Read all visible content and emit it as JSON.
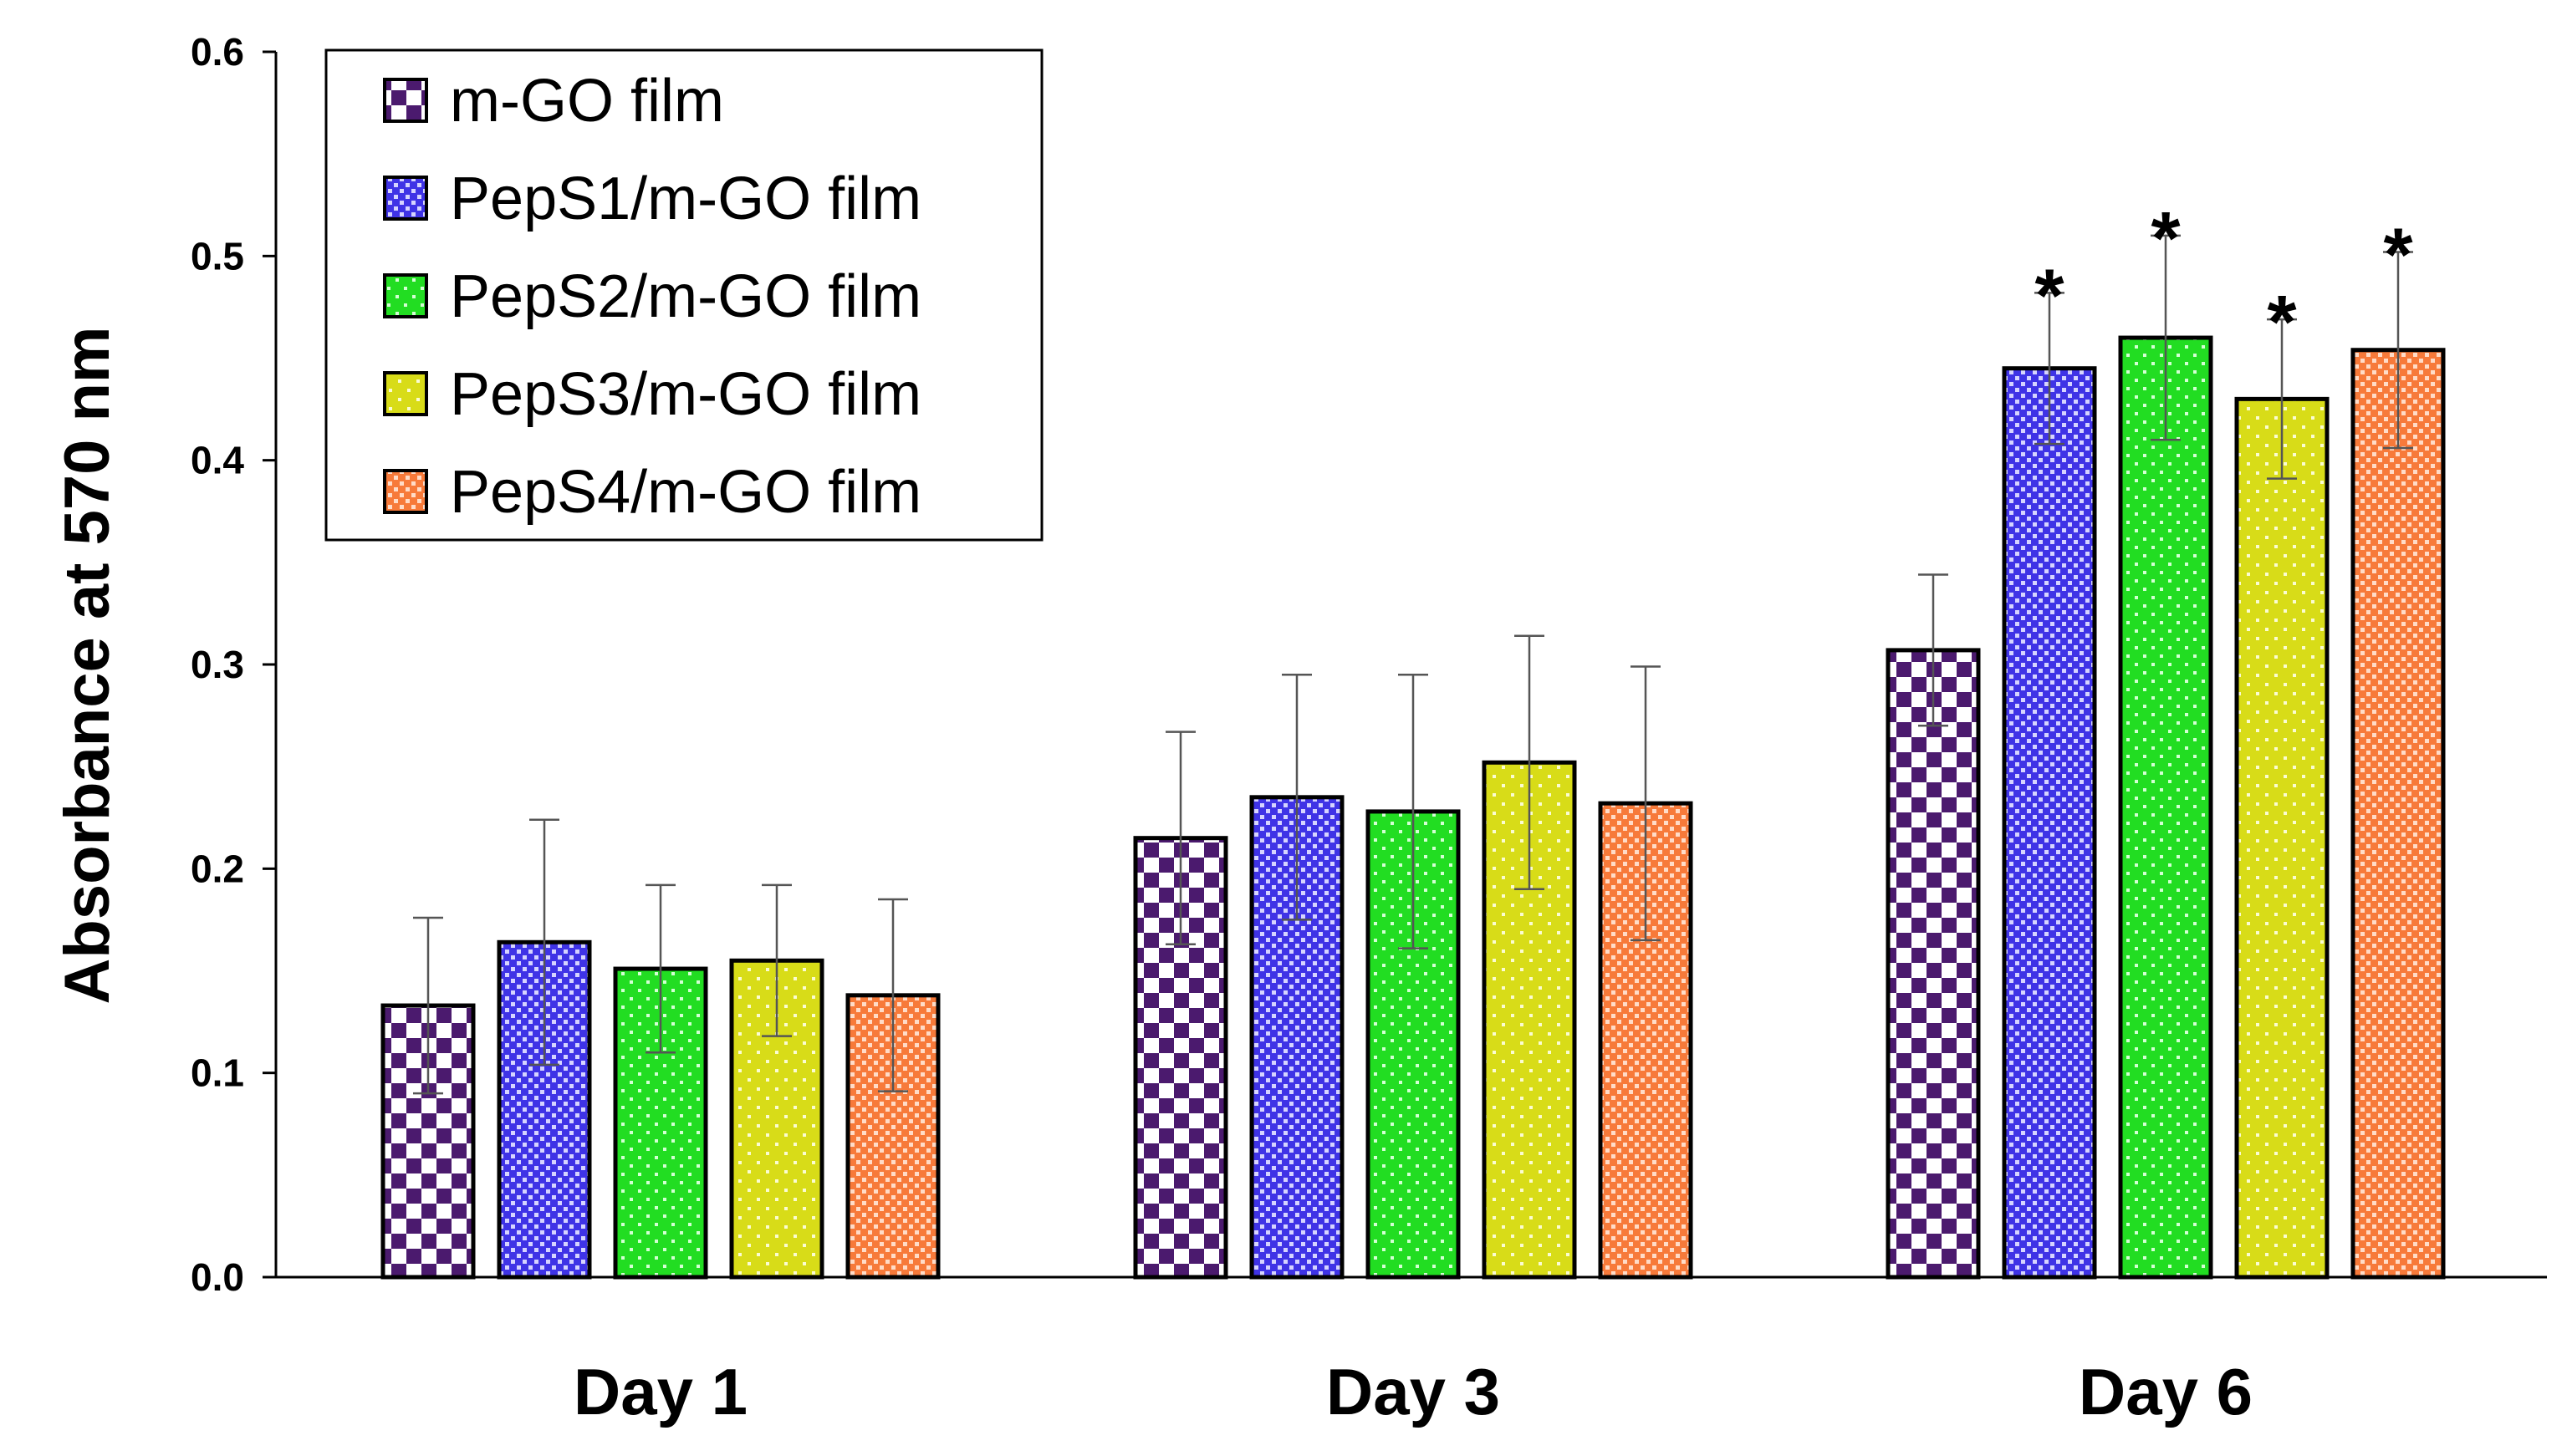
{
  "chart_data": {
    "type": "bar",
    "title": "",
    "xlabel": "",
    "ylabel": "Absorbance at 570 nm",
    "ylim": [
      0,
      0.6
    ],
    "yticks": [
      "0.0",
      "0.1",
      "0.2",
      "0.3",
      "0.4",
      "0.5",
      "0.6"
    ],
    "grid": false,
    "legend_position": "top-left",
    "categories": [
      "Day 1",
      "Day 3",
      "Day 6"
    ],
    "series": [
      {
        "name": "m-GO film",
        "color": "#4b1a6e",
        "pattern": "checker",
        "values": [
          0.133,
          0.215,
          0.307
        ],
        "errors": [
          0.043,
          0.052,
          0.037
        ],
        "significance": [
          "",
          "",
          ""
        ]
      },
      {
        "name": "PepS1/m-GO film",
        "color": "#3f33e6",
        "pattern": "dots",
        "values": [
          0.164,
          0.235,
          0.445
        ],
        "errors": [
          0.06,
          0.06,
          0.037
        ],
        "significance": [
          "",
          "",
          "*"
        ]
      },
      {
        "name": "PepS2/m-GO film",
        "color": "#22dd22",
        "pattern": "sparse-dots",
        "values": [
          0.151,
          0.228,
          0.46
        ],
        "errors": [
          0.041,
          0.067,
          0.05
        ],
        "significance": [
          "",
          "",
          "*"
        ]
      },
      {
        "name": "PepS3/m-GO film",
        "color": "#d8dc18",
        "pattern": "sparse-dots",
        "values": [
          0.155,
          0.252,
          0.43
        ],
        "errors": [
          0.037,
          0.062,
          0.039
        ],
        "significance": [
          "",
          "",
          "*"
        ]
      },
      {
        "name": "PepS4/m-GO film",
        "color": "#f77a3a",
        "pattern": "dots",
        "values": [
          0.138,
          0.232,
          0.454
        ],
        "errors": [
          0.047,
          0.067,
          0.048
        ],
        "significance": [
          "",
          "",
          "*"
        ]
      }
    ]
  }
}
